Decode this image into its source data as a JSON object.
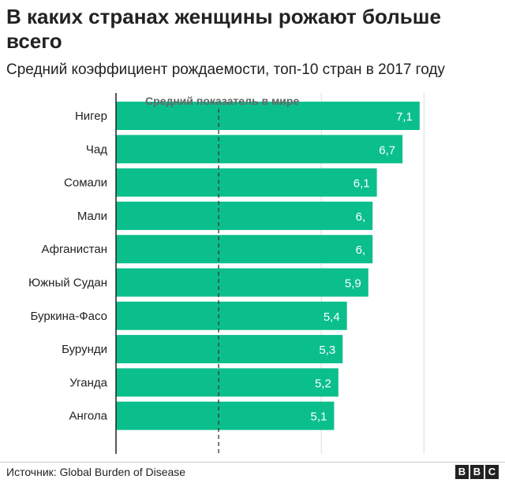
{
  "header": {
    "title": "В каких странах женщины рожают больше всего",
    "subtitle": "Средний коэффициент рождаемости, топ-10 стран в 2017 году"
  },
  "footer": {
    "source": "Источник: Global Burden of Disease",
    "logo_letters": [
      "B",
      "B",
      "C"
    ]
  },
  "colors": {
    "bar": "#0bbf8c",
    "grid": "#dddddd",
    "axis": "#222222",
    "avg_line": "#333333"
  },
  "chart_data": {
    "type": "bar",
    "orientation": "horizontal",
    "categories": [
      "Нигер",
      "Чад",
      "Сомали",
      "Мали",
      "Афганистан",
      "Южный Судан",
      "Буркина-Фасо",
      "Бурунди",
      "Уганда",
      "Ангола"
    ],
    "values": [
      7.1,
      6.7,
      6.1,
      6.0,
      6.0,
      5.9,
      5.4,
      5.3,
      5.2,
      5.1
    ],
    "value_labels": [
      "7,1",
      "6,7",
      "6,1",
      "6,",
      "6,",
      "5,9",
      "5,4",
      "5,3",
      "5,2",
      "5,1"
    ],
    "title": "В каких странах женщины рожают больше всего",
    "xlim": [
      0,
      7.3
    ],
    "gridlines": [
      0,
      2.4,
      4.8,
      7.2
    ],
    "reference_line": {
      "value": 2.4,
      "label": "Средний показатель в мире"
    },
    "grid": true,
    "legend": "none"
  }
}
